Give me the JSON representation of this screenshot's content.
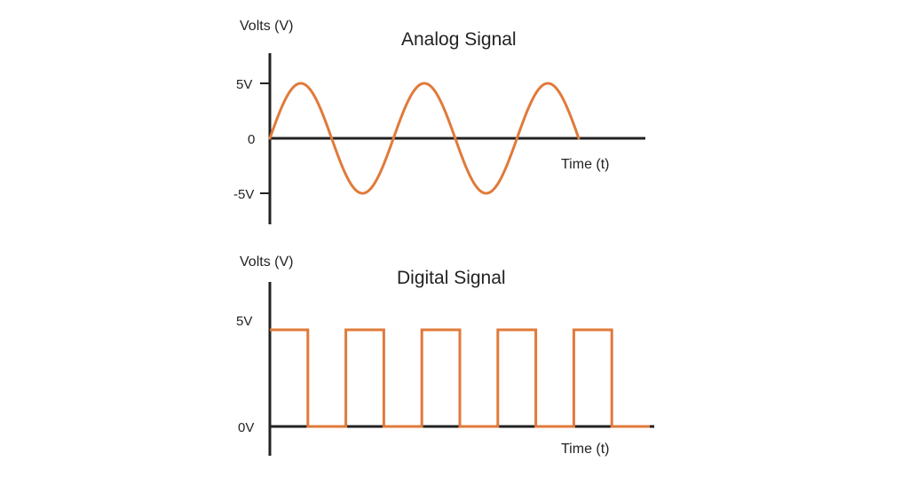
{
  "colors": {
    "signal": "#E07A3A",
    "axis": "#222222",
    "background": "#ffffff"
  },
  "chart_data": [
    {
      "type": "line",
      "title": "Analog Signal",
      "ylabel": "Volts (V)",
      "xlabel": "Time (t)",
      "yticks": [
        {
          "value": 5,
          "label": "5V"
        },
        {
          "value": 0,
          "label": "0"
        },
        {
          "value": -5,
          "label": "-5V"
        }
      ],
      "ylim": [
        -6,
        6
      ],
      "waveform": "sine",
      "amplitude": 5,
      "cycles": 2.5
    },
    {
      "type": "line",
      "title": "Digital Signal",
      "ylabel": "Volts (V)",
      "xlabel": "Time (t)",
      "yticks": [
        {
          "value": 5,
          "label": "5V"
        },
        {
          "value": 0,
          "label": "0V"
        }
      ],
      "ylim": [
        0,
        6
      ],
      "waveform": "square",
      "levels": [
        5,
        0,
        5,
        0,
        5,
        0,
        5,
        0,
        5,
        0
      ]
    }
  ]
}
